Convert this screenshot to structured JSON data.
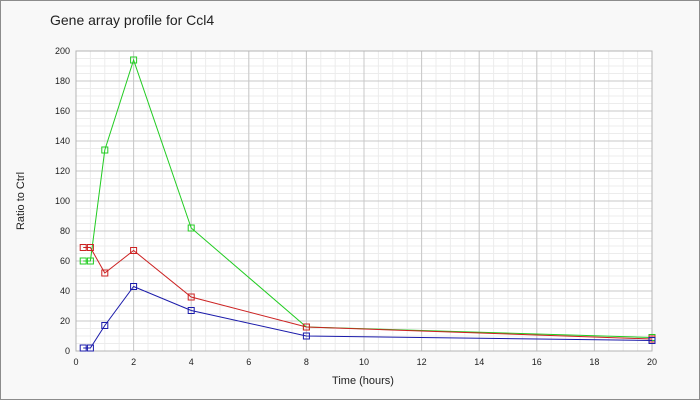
{
  "chart_data": {
    "type": "line",
    "title": "Gene array profile for Ccl4",
    "xlabel": "Time (hours)",
    "ylabel": "Ratio to Ctrl",
    "xlim": [
      0,
      20
    ],
    "ylim": [
      0,
      200
    ],
    "x_ticks": [
      0,
      2,
      4,
      6,
      8,
      10,
      12,
      14,
      16,
      18,
      20
    ],
    "y_ticks": [
      0,
      20,
      40,
      60,
      80,
      100,
      120,
      140,
      160,
      180,
      200
    ],
    "grid": true,
    "legend": false,
    "series": [
      {
        "color": "#22cc22",
        "x": [
          0.25,
          0.5,
          1,
          2,
          4,
          8,
          20
        ],
        "y": [
          60,
          60,
          134,
          194,
          82,
          16,
          9
        ]
      },
      {
        "color": "#cc2222",
        "x": [
          0.25,
          0.5,
          1,
          2,
          4,
          8,
          20
        ],
        "y": [
          69,
          69,
          52,
          67,
          36,
          16,
          8
        ]
      },
      {
        "color": "#1a1aaa",
        "x": [
          0.25,
          0.5,
          1,
          2,
          4,
          8,
          20
        ],
        "y": [
          2,
          2,
          17,
          43,
          27,
          10,
          7
        ]
      }
    ]
  }
}
